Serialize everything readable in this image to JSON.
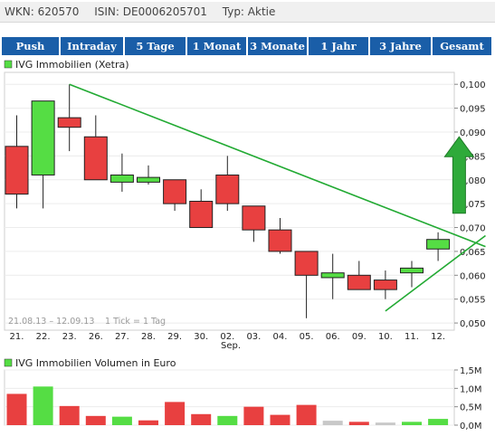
{
  "info": {
    "wkn": "WKN: 620570",
    "isin": "ISIN: DE0006205701",
    "typ": "Typ: Aktie"
  },
  "tabs": [
    "Push",
    "Intraday",
    "5 Tage",
    "1 Monat",
    "3 Monate",
    "1 Jahr",
    "3 Jahre",
    "Gesamt"
  ],
  "colors": {
    "up": "#55dd44",
    "down": "#e84040",
    "neutral": "#c8c8c8",
    "trend": "#22aa33",
    "tab_bg": "#1a5ea8"
  },
  "chart_data": [
    {
      "type": "candlestick",
      "legend": "IVG Immobilien (Xetra)",
      "range_label": "21.08.13 – 12.09.13",
      "tick_label": "1 Tick = 1 Tag",
      "month_label": "Sep.",
      "x_ticks": [
        "21.",
        "22.",
        "23.",
        "26.",
        "27.",
        "28.",
        "29.",
        "30.",
        "02.",
        "03.",
        "04.",
        "05.",
        "06.",
        "09.",
        "10.",
        "11.",
        "12."
      ],
      "y_ticks": [
        "0,100",
        "0,095",
        "0,090",
        "0,085",
        "0,080",
        "0,075",
        "0,070",
        "0,065",
        "0,060",
        "0,055",
        "0,050"
      ],
      "ylim": [
        0.0485,
        0.1025
      ],
      "candles": [
        {
          "o": 0.087,
          "h": 0.0935,
          "l": 0.074,
          "c": 0.077
        },
        {
          "o": 0.081,
          "h": 0.0965,
          "l": 0.074,
          "c": 0.0965
        },
        {
          "o": 0.093,
          "h": 0.1,
          "l": 0.086,
          "c": 0.091
        },
        {
          "o": 0.089,
          "h": 0.0935,
          "l": 0.08,
          "c": 0.08
        },
        {
          "o": 0.0795,
          "h": 0.0855,
          "l": 0.0775,
          "c": 0.081
        },
        {
          "o": 0.0795,
          "h": 0.083,
          "l": 0.079,
          "c": 0.0805
        },
        {
          "o": 0.08,
          "h": 0.08,
          "l": 0.0735,
          "c": 0.075
        },
        {
          "o": 0.0755,
          "h": 0.078,
          "l": 0.07,
          "c": 0.07
        },
        {
          "o": 0.081,
          "h": 0.085,
          "l": 0.0735,
          "c": 0.075
        },
        {
          "o": 0.0745,
          "h": 0.0745,
          "l": 0.067,
          "c": 0.0695
        },
        {
          "o": 0.0695,
          "h": 0.072,
          "l": 0.0645,
          "c": 0.065
        },
        {
          "o": 0.065,
          "h": 0.065,
          "l": 0.051,
          "c": 0.06
        },
        {
          "o": 0.0595,
          "h": 0.0645,
          "l": 0.055,
          "c": 0.0605
        },
        {
          "o": 0.06,
          "h": 0.063,
          "l": 0.057,
          "c": 0.057
        },
        {
          "o": 0.059,
          "h": 0.061,
          "l": 0.055,
          "c": 0.057
        },
        {
          "o": 0.0605,
          "h": 0.063,
          "l": 0.0575,
          "c": 0.0615
        },
        {
          "o": 0.0655,
          "h": 0.069,
          "l": 0.063,
          "c": 0.0675
        }
      ],
      "trendlines": [
        {
          "x1": 2.0,
          "y1": 0.1,
          "x2": 17.8,
          "y2": 0.066
        },
        {
          "x1": 14.0,
          "y1": 0.0525,
          "x2": 17.8,
          "y2": 0.0683
        }
      ],
      "arrow": {
        "x": 16.8,
        "y_from": 0.073,
        "y_to": 0.089
      }
    },
    {
      "type": "bar",
      "legend": "IVG Immobilien Volumen in Euro",
      "y_ticks": [
        "1,5M",
        "1,0M",
        "0,5M",
        "0,0M"
      ],
      "ylim": [
        0,
        1.5
      ],
      "values": [
        0.85,
        1.05,
        0.52,
        0.25,
        0.23,
        0.13,
        0.63,
        0.3,
        0.25,
        0.5,
        0.28,
        0.55,
        0.12,
        0.09,
        0.07,
        0.09,
        0.17
      ],
      "colors": [
        "down",
        "up",
        "down",
        "down",
        "up",
        "down",
        "down",
        "down",
        "up",
        "down",
        "down",
        "down",
        "neutral",
        "down",
        "neutral",
        "up",
        "up"
      ]
    }
  ]
}
